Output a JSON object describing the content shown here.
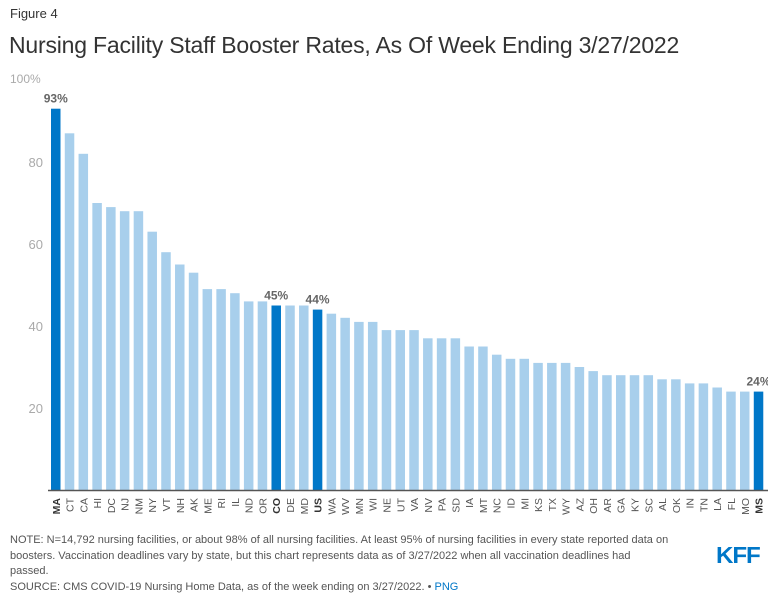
{
  "figure_label": "Figure 4",
  "title": "Nursing Facility Staff Booster Rates, As Of Week Ending 3/27/2022",
  "chart_data": {
    "type": "bar",
    "title": "Nursing Facility Staff Booster Rates, As Of Week Ending 3/27/2022",
    "xlabel": "",
    "ylabel": "",
    "ylim": [
      0,
      100
    ],
    "yticks": [
      {
        "value": 20,
        "label": "20"
      },
      {
        "value": 40,
        "label": "40"
      },
      {
        "value": 60,
        "label": "60"
      },
      {
        "value": 80,
        "label": "80"
      },
      {
        "value": 100,
        "label": "100%"
      }
    ],
    "grid": false,
    "categories": [
      "MA",
      "CT",
      "CA",
      "HI",
      "DC",
      "NJ",
      "NM",
      "NY",
      "VT",
      "NH",
      "AK",
      "ME",
      "RI",
      "IL",
      "ND",
      "OR",
      "CO",
      "DE",
      "MD",
      "US",
      "WA",
      "WV",
      "MN",
      "WI",
      "NE",
      "UT",
      "VA",
      "NV",
      "PA",
      "SD",
      "IA",
      "MT",
      "NC",
      "ID",
      "MI",
      "KS",
      "TX",
      "WY",
      "AZ",
      "OH",
      "AR",
      "GA",
      "KY",
      "SC",
      "AL",
      "OK",
      "IN",
      "TN",
      "LA",
      "FL",
      "MO",
      "MS"
    ],
    "values": [
      93,
      87,
      82,
      70,
      69,
      68,
      68,
      63,
      58,
      55,
      53,
      49,
      49,
      48,
      46,
      46,
      45,
      45,
      45,
      44,
      43,
      42,
      41,
      41,
      39,
      39,
      39,
      37,
      37,
      37,
      35,
      35,
      33,
      32,
      32,
      31,
      31,
      31,
      30,
      29,
      28,
      28,
      28,
      28,
      27,
      27,
      26,
      26,
      25,
      24,
      24,
      24
    ],
    "highlighted": [
      "MA",
      "CO",
      "US",
      "MS"
    ],
    "data_labels": [
      {
        "category": "MA",
        "label": "93%"
      },
      {
        "category": "CO",
        "label": "45%"
      },
      {
        "category": "US",
        "label": "44%"
      },
      {
        "category": "MS",
        "label": "24%"
      }
    ],
    "colors": {
      "default": "#a8cfec",
      "highlight": "#0077c8",
      "axis": "#555555",
      "tick_text": "#aaaaaa",
      "label_text": "#666666"
    }
  },
  "footer": {
    "note": "NOTE: N=14,792 nursing facilities, or about 98% of all nursing facilities. At least 95% of nursing facilities in every state reported data on boosters. Vaccination deadlines vary by state, but this chart represents data as of 3/27/2022 when all vaccination deadlines had passed.",
    "source": "SOURCE: CMS COVID-19 Nursing Home Data, as of the week ending on 3/27/2022. •",
    "png_link": "PNG"
  },
  "logo": "KFF"
}
